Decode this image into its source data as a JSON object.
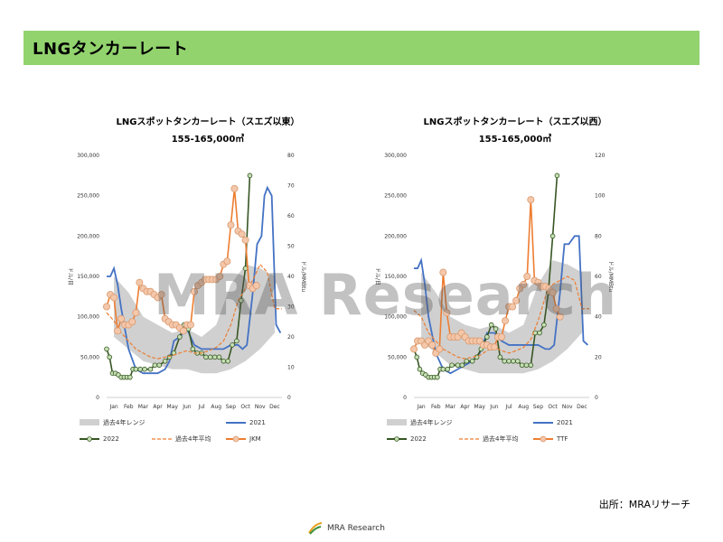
{
  "page": {
    "title": "LNGタンカーレート",
    "source": "出所：MRAリサーチ",
    "footer_brand": "MRA Research",
    "watermark": "MRA Research"
  },
  "colors": {
    "band": "#d0d0d0",
    "y2021": "#4472c4",
    "y2022": "#375623",
    "avg": "#ed7d31",
    "price": "#ed7d31",
    "marker_fill": "#f4c7aa",
    "green_marker_fill": "#c5e0b4"
  },
  "chart_data": [
    {
      "type": "line",
      "title": "LNGスポットタンカーレート（スエズ以東）",
      "subtitle": "155-165,000㎥",
      "ylabel": "ドル/日",
      "y2label": "ドル/MMBtu",
      "categories": [
        "Jan",
        "Feb",
        "Mar",
        "Apr",
        "May",
        "Jun",
        "Jul",
        "Aug",
        "Sep",
        "Oct",
        "Nov",
        "Dec"
      ],
      "ylim": [
        0,
        300000
      ],
      "yticks": [
        "0",
        "50,000",
        "100,000",
        "150,000",
        "200,000",
        "250,000",
        "300,000"
      ],
      "y2lim": [
        0,
        80
      ],
      "y2ticks": [
        "0",
        "10",
        "20",
        "30",
        "40",
        "50",
        "60",
        "70",
        "80"
      ],
      "legend": [
        "過去4年レンジ",
        "2021",
        "2022",
        "過去4年平均",
        "JKM"
      ],
      "band": {
        "name": "過去4年レンジ",
        "low": [
          75000,
          60000,
          45000,
          40000,
          35000,
          35000,
          30000,
          30000,
          35000,
          45000,
          60000,
          80000
        ],
        "high": [
          150000,
          130000,
          100000,
          90000,
          80000,
          85000,
          75000,
          90000,
          140000,
          165000,
          160000,
          150000
        ]
      },
      "series": [
        {
          "name": "2021",
          "x": [
            0,
            0.25,
            0.5,
            0.75,
            1,
            1.5,
            2,
            2.5,
            3,
            3.5,
            4,
            4.3,
            4.6,
            5,
            5.5,
            6,
            6.5,
            7,
            7.5,
            8,
            8.5,
            9,
            9.3,
            9.6,
            10,
            10.3,
            10.6,
            10.8,
            11,
            11.3,
            11.6,
            11.9
          ],
          "y": [
            150000,
            150000,
            160000,
            140000,
            110000,
            60000,
            35000,
            30000,
            30000,
            30000,
            35000,
            45000,
            70000,
            75000,
            85000,
            65000,
            60000,
            60000,
            60000,
            60000,
            65000,
            65000,
            60000,
            65000,
            130000,
            190000,
            200000,
            250000,
            260000,
            250000,
            90000,
            80000
          ]
        },
        {
          "name": "2022",
          "x": [
            0,
            0.2,
            0.4,
            0.6,
            0.8,
            1,
            1.2,
            1.4,
            1.6,
            1.8,
            2,
            2.3,
            2.6,
            3,
            3.3,
            3.6,
            4,
            4.3,
            4.6,
            5,
            5.3,
            5.6,
            5.9,
            6.2,
            6.5,
            6.8,
            7.1,
            7.4,
            7.7,
            8,
            8.3,
            8.6,
            8.9,
            9.2,
            9.5,
            9.8
          ],
          "y": [
            60000,
            50000,
            30000,
            30000,
            28000,
            25000,
            25000,
            25000,
            25000,
            35000,
            35000,
            35000,
            35000,
            35000,
            40000,
            40000,
            45000,
            50000,
            55000,
            75000,
            90000,
            85000,
            60000,
            55000,
            55000,
            50000,
            50000,
            50000,
            50000,
            45000,
            45000,
            65000,
            70000,
            120000,
            160000,
            275000
          ]
        },
        {
          "name": "過去4年平均",
          "x": [
            0,
            0.5,
            1,
            1.5,
            2,
            2.5,
            3,
            3.5,
            4,
            4.5,
            5,
            5.5,
            6,
            6.5,
            7,
            7.5,
            8,
            8.5,
            9,
            9.5,
            10,
            10.5,
            11,
            11.5,
            12
          ],
          "y": [
            105000,
            95000,
            80000,
            70000,
            60000,
            55000,
            50000,
            48000,
            50000,
            52000,
            55000,
            58000,
            55000,
            55000,
            58000,
            62000,
            70000,
            90000,
            120000,
            135000,
            145000,
            165000,
            155000,
            110000,
            110000
          ]
        },
        {
          "name": "JKM",
          "axis": "right",
          "x": [
            0,
            0.25,
            0.5,
            0.75,
            1,
            1.25,
            1.5,
            1.75,
            2,
            2.25,
            2.5,
            2.75,
            3,
            3.25,
            3.5,
            3.75,
            4,
            4.25,
            4.5,
            4.75,
            5,
            5.25,
            5.5,
            5.75,
            6,
            6.25,
            6.5,
            6.75,
            7,
            7.25,
            7.5,
            7.75,
            8,
            8.25,
            8.5,
            8.75,
            9,
            9.25,
            9.5,
            9.75,
            10,
            10.25
          ],
          "y": [
            30,
            34,
            33,
            22,
            26,
            24,
            24,
            25,
            28,
            38,
            36,
            35,
            35,
            34,
            33,
            34,
            26,
            25,
            24,
            24,
            23,
            22,
            24,
            24,
            35,
            37,
            38,
            39,
            39,
            39,
            39,
            40,
            44,
            45,
            57,
            69,
            55,
            54,
            52,
            37,
            36,
            37
          ]
        }
      ]
    },
    {
      "type": "line",
      "title": "LNGスポットタンカーレート（スエズ以西）",
      "subtitle": "155-165,000㎥",
      "ylabel": "ドル/日",
      "y2label": "ドル/MMBtu",
      "categories": [
        "Jan",
        "Feb",
        "Mar",
        "Apr",
        "May",
        "Jun",
        "Jul",
        "Aug",
        "Sep",
        "Oct",
        "Nov",
        "Dec"
      ],
      "ylim": [
        0,
        300000
      ],
      "yticks": [
        "0",
        "50,000",
        "100,000",
        "150,000",
        "200,000",
        "250,000",
        "300,000"
      ],
      "y2lim": [
        0,
        120
      ],
      "y2ticks": [
        "0",
        "20",
        "40",
        "60",
        "80",
        "100",
        "120"
      ],
      "legend": [
        "過去4年レンジ",
        "2021",
        "2022",
        "過去4年平均",
        "TTF"
      ],
      "band": {
        "name": "過去4年レンジ",
        "low": [
          70000,
          55000,
          40000,
          35000,
          30000,
          30000,
          30000,
          30000,
          35000,
          45000,
          60000,
          80000
        ],
        "high": [
          155000,
          130000,
          100000,
          90000,
          85000,
          90000,
          80000,
          90000,
          140000,
          170000,
          165000,
          155000
        ]
      },
      "series": [
        {
          "name": "2021",
          "x": [
            0,
            0.25,
            0.5,
            0.75,
            1,
            1.5,
            2,
            2.5,
            3,
            3.5,
            4,
            4.5,
            5,
            5.5,
            6,
            6.5,
            7,
            7.5,
            8,
            8.5,
            9,
            9.3,
            9.6,
            10,
            10.3,
            10.6,
            11,
            11.3,
            11.6,
            11.9
          ],
          "y": [
            160000,
            160000,
            170000,
            140000,
            100000,
            55000,
            35000,
            30000,
            35000,
            40000,
            45000,
            55000,
            80000,
            80000,
            70000,
            65000,
            65000,
            65000,
            65000,
            65000,
            60000,
            60000,
            65000,
            130000,
            190000,
            190000,
            200000,
            200000,
            70000,
            65000
          ]
        },
        {
          "name": "2022",
          "x": [
            0,
            0.2,
            0.4,
            0.6,
            0.8,
            1,
            1.2,
            1.4,
            1.6,
            1.8,
            2,
            2.3,
            2.6,
            3,
            3.3,
            3.6,
            4,
            4.3,
            4.6,
            5,
            5.3,
            5.6,
            5.9,
            6.2,
            6.5,
            6.8,
            7.1,
            7.4,
            7.7,
            8,
            8.3,
            8.6,
            8.9,
            9.2,
            9.5,
            9.8
          ],
          "y": [
            60000,
            50000,
            35000,
            30000,
            28000,
            25000,
            25000,
            25000,
            25000,
            35000,
            35000,
            35000,
            40000,
            40000,
            40000,
            45000,
            45000,
            50000,
            60000,
            75000,
            90000,
            85000,
            50000,
            45000,
            45000,
            45000,
            45000,
            40000,
            40000,
            40000,
            80000,
            80000,
            90000,
            130000,
            200000,
            275000
          ]
        },
        {
          "name": "過去4年平均",
          "x": [
            0,
            0.5,
            1,
            1.5,
            2,
            2.5,
            3,
            3.5,
            4,
            4.5,
            5,
            5.5,
            6,
            6.5,
            7,
            7.5,
            8,
            8.5,
            9,
            9.5,
            10,
            10.5,
            11,
            11.5,
            12
          ],
          "y": [
            108000,
            100000,
            80000,
            70000,
            60000,
            55000,
            50000,
            48000,
            50000,
            52000,
            58000,
            62000,
            58000,
            55000,
            58000,
            62000,
            72000,
            95000,
            125000,
            140000,
            145000,
            150000,
            145000,
            110000,
            110000
          ]
        },
        {
          "name": "TTF",
          "axis": "right",
          "x": [
            0,
            0.25,
            0.5,
            0.75,
            1,
            1.25,
            1.5,
            1.75,
            2,
            2.25,
            2.5,
            2.75,
            3,
            3.25,
            3.5,
            3.75,
            4,
            4.25,
            4.5,
            4.75,
            5,
            5.25,
            5.5,
            5.75,
            6,
            6.25,
            6.5,
            6.75,
            7,
            7.25,
            7.5,
            7.75,
            8,
            8.25,
            8.5,
            8.75,
            9,
            9.25,
            9.5,
            9.75,
            10
          ],
          "y": [
            24,
            28,
            28,
            26,
            28,
            26,
            22,
            24,
            62,
            42,
            30,
            30,
            30,
            32,
            30,
            28,
            28,
            28,
            28,
            26,
            26,
            25,
            25,
            30,
            30,
            38,
            45,
            45,
            48,
            54,
            56,
            60,
            98,
            58,
            57,
            55,
            55,
            54,
            52,
            44,
            40
          ]
        }
      ]
    }
  ]
}
